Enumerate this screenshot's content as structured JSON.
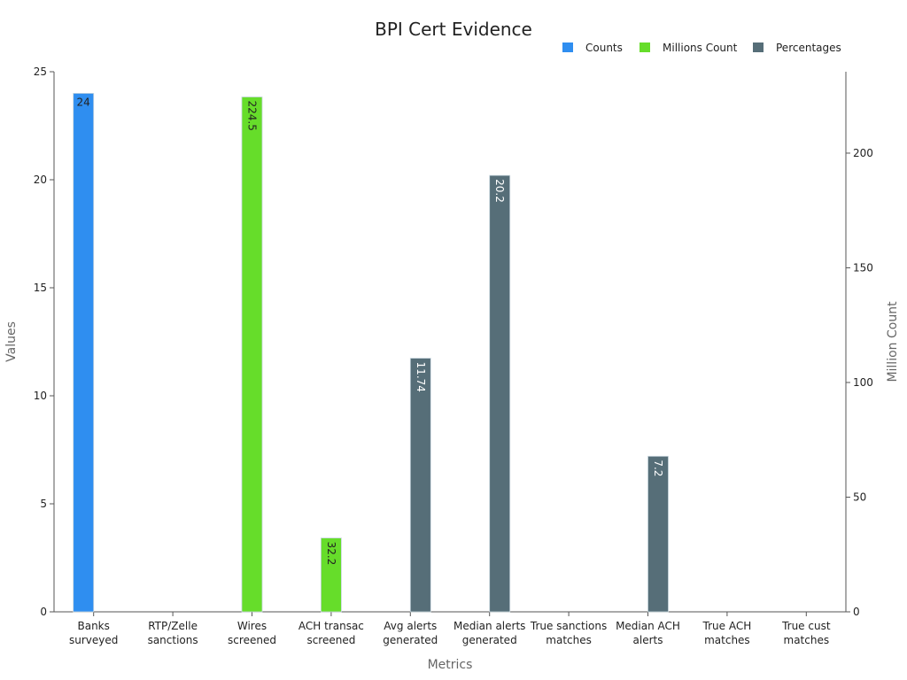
{
  "chart_data": {
    "type": "bar",
    "title": "BPI Cert Evidence",
    "xlabel": "Metrics",
    "ylabel": "Values",
    "y2label": "Million Count",
    "ylim": [
      0,
      25
    ],
    "y2lim": [
      0,
      235.5
    ],
    "yticks": [
      "0",
      "5",
      "10",
      "15",
      "20",
      "25"
    ],
    "y2ticks": [
      "0",
      "50",
      "100",
      "150",
      "200"
    ],
    "legend_position": "top-right",
    "grid": false,
    "categories": [
      [
        "Banks",
        "surveyed"
      ],
      [
        "RTP/Zelle",
        "sanctions"
      ],
      [
        "Wires",
        "screened"
      ],
      [
        "ACH transac",
        "screened"
      ],
      [
        "Avg alerts",
        "generated"
      ],
      [
        "Median alerts",
        "generated"
      ],
      [
        "True sanctions",
        "matches"
      ],
      [
        "Median ACH",
        "alerts"
      ],
      [
        "True ACH",
        "matches"
      ],
      [
        "True cust",
        "matches"
      ]
    ],
    "series": [
      {
        "name": "Counts",
        "color": "#2f8ef0",
        "axis": "left",
        "label_color": "#222222",
        "values": [
          24,
          null,
          null,
          null,
          null,
          null,
          null,
          null,
          null,
          null
        ],
        "labels": [
          "24",
          "",
          "",
          "",
          "",
          "",
          "",
          "",
          "",
          ""
        ]
      },
      {
        "name": "Millions Count",
        "color": "#66dd2a",
        "axis": "right",
        "label_color": "#222222",
        "values": [
          null,
          null,
          224.5,
          32.2,
          null,
          null,
          null,
          null,
          null,
          null
        ],
        "labels": [
          "",
          "",
          "224.5",
          "32.2",
          "",
          "",
          "",
          "",
          "",
          ""
        ]
      },
      {
        "name": "Percentages",
        "color": "#566e78",
        "axis": "left",
        "label_color": "#ffffff",
        "values": [
          null,
          null,
          null,
          null,
          11.74,
          20.2,
          null,
          7.2,
          null,
          null
        ],
        "labels": [
          "",
          "",
          "",
          "",
          "11.74",
          "20.2",
          "",
          "7.2",
          "",
          ""
        ]
      }
    ]
  }
}
